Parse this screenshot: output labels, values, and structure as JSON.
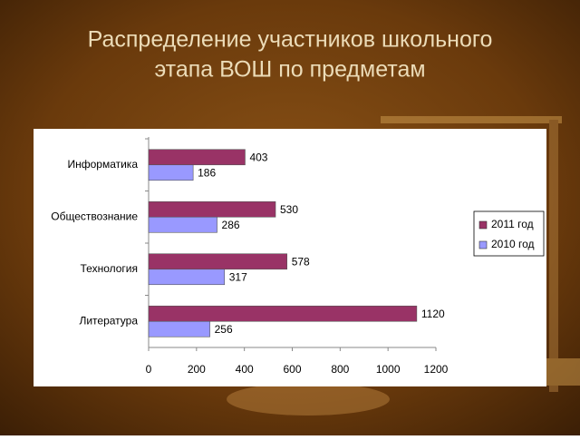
{
  "chart_data": {
    "type": "bar",
    "orientation": "horizontal",
    "title": [
      "Распределение участников школьного",
      "этапа ВОШ по предметам"
    ],
    "categories": [
      "Информатика",
      "Обществознание",
      "Технология",
      "Литература"
    ],
    "series": [
      {
        "name": "2011 год",
        "color": "#993366",
        "values": [
          403,
          530,
          578,
          1120
        ]
      },
      {
        "name": "2010 год",
        "color": "#9999ff",
        "values": [
          186,
          286,
          317,
          256
        ]
      }
    ],
    "xlim": [
      0,
      1200
    ],
    "xticks": [
      0,
      200,
      400,
      600,
      800,
      1000,
      1200
    ],
    "grid": false,
    "data_labels": true,
    "legend": "right"
  }
}
